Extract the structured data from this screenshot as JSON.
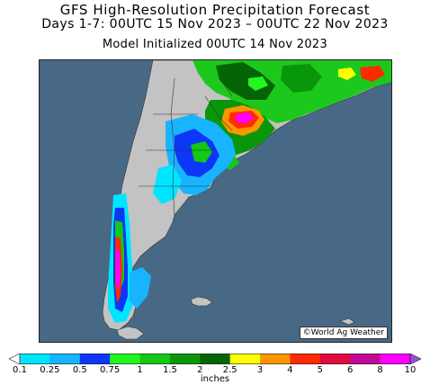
{
  "header": {
    "title": "GFS High-Resolution Precipitation Forecast",
    "subtitle": "Days 1-7: 00UTC 15 Nov 2023 – 00UTC 22 Nov 2023",
    "init": "Model Initialized 00UTC 14 Nov 2023"
  },
  "credit": "©World Ag Weather",
  "legend": {
    "units": "inches",
    "ticks": [
      "0.1",
      "0.25",
      "0.5",
      "0.75",
      "1",
      "1.5",
      "2",
      "2.5",
      "3",
      "4",
      "5",
      "6",
      "8",
      "10"
    ],
    "colors": [
      "#00e5ff",
      "#19b4ff",
      "#0d36f7",
      "#1ff71f",
      "#14c814",
      "#0a960a",
      "#056405",
      "#ffff00",
      "#ff9600",
      "#ff2a00",
      "#e00a3c",
      "#c00a96",
      "#ff00ff",
      "#9b4fd6"
    ]
  },
  "map_colors": {
    "ocean": "#476985",
    "land": "#c3c3c3"
  }
}
